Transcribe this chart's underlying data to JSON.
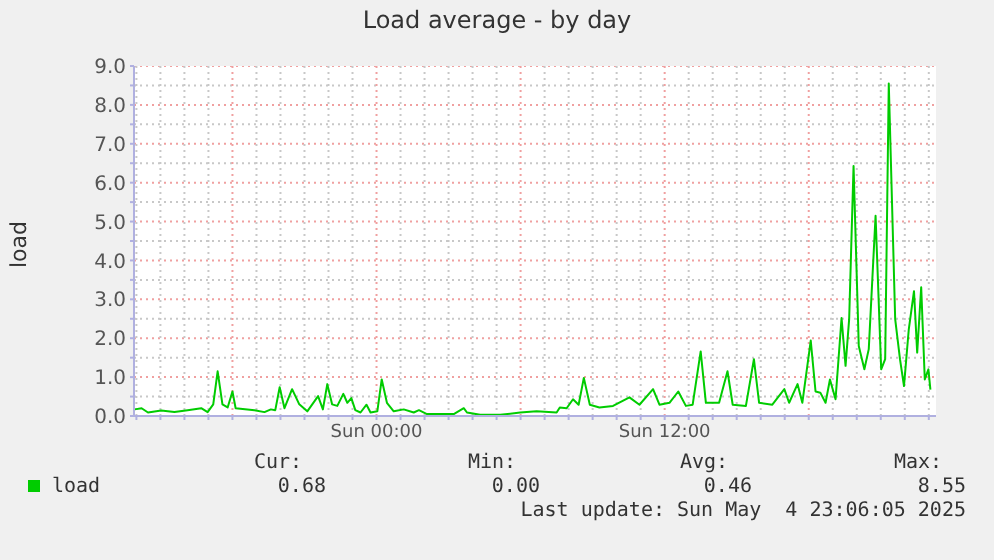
{
  "chart_data": {
    "type": "line",
    "title": "Load average - by day",
    "ylabel": "load",
    "x": [
      "2025-05-03T13:56",
      "2025-05-03T14:13",
      "2025-05-03T14:29",
      "2025-05-03T15:02",
      "2025-05-03T15:35",
      "2025-05-03T16:08",
      "2025-05-03T16:42",
      "2025-05-03T16:58",
      "2025-05-03T17:12",
      "2025-05-03T17:23",
      "2025-05-03T17:35",
      "2025-05-03T17:48",
      "2025-05-03T18:00",
      "2025-05-03T18:08",
      "2025-05-03T18:55",
      "2025-05-03T19:20",
      "2025-05-03T19:36",
      "2025-05-03T19:47",
      "2025-05-03T19:58",
      "2025-05-03T20:10",
      "2025-05-03T20:29",
      "2025-05-03T20:47",
      "2025-05-03T21:07",
      "2025-05-03T21:34",
      "2025-05-03T21:46",
      "2025-05-03T21:57",
      "2025-05-03T22:09",
      "2025-05-03T22:22",
      "2025-05-03T22:37",
      "2025-05-03T22:47",
      "2025-05-03T22:57",
      "2025-05-03T23:07",
      "2025-05-03T23:20",
      "2025-05-03T23:35",
      "2025-05-03T23:45",
      "2025-05-04T00:02",
      "2025-05-04T00:13",
      "2025-05-04T00:26",
      "2025-05-04T00:43",
      "2025-05-04T01:08",
      "2025-05-04T01:33",
      "2025-05-04T01:46",
      "2025-05-04T02:06",
      "2025-05-04T02:40",
      "2025-05-04T03:13",
      "2025-05-04T03:38",
      "2025-05-04T03:46",
      "2025-05-04T04:19",
      "2025-05-04T05:09",
      "2025-05-04T05:59",
      "2025-05-04T06:40",
      "2025-05-04T07:30",
      "2025-05-04T07:38",
      "2025-05-04T07:55",
      "2025-05-04T08:11",
      "2025-05-04T08:25",
      "2025-05-04T08:38",
      "2025-05-04T08:53",
      "2025-05-04T09:17",
      "2025-05-04T09:51",
      "2025-05-04T10:32",
      "2025-05-04T10:57",
      "2025-05-04T11:31",
      "2025-05-04T11:47",
      "2025-05-04T12:12",
      "2025-05-04T12:34",
      "2025-05-04T12:53",
      "2025-05-04T13:10",
      "2025-05-04T13:30",
      "2025-05-04T13:43",
      "2025-05-04T14:16",
      "2025-05-04T14:37",
      "2025-05-04T14:50",
      "2025-05-04T15:23",
      "2025-05-04T15:43",
      "2025-05-04T15:56",
      "2025-05-04T16:29",
      "2025-05-04T16:59",
      "2025-05-04T17:11",
      "2025-05-04T17:32",
      "2025-05-04T17:44",
      "2025-05-04T18:05",
      "2025-05-04T18:17",
      "2025-05-04T18:29",
      "2025-05-04T18:42",
      "2025-05-04T18:53",
      "2025-05-04T19:07",
      "2025-05-04T19:22",
      "2025-05-04T19:32",
      "2025-05-04T19:41",
      "2025-05-04T19:52",
      "2025-05-04T20:05",
      "2025-05-04T20:19",
      "2025-05-04T20:30",
      "2025-05-04T20:47",
      "2025-05-04T21:01",
      "2025-05-04T21:11",
      "2025-05-04T21:20",
      "2025-05-04T21:36",
      "2025-05-04T21:48",
      "2025-05-04T21:58",
      "2025-05-04T22:10",
      "2025-05-04T22:23",
      "2025-05-04T22:31",
      "2025-05-04T22:41",
      "2025-05-04T22:50",
      "2025-05-04T22:59",
      "2025-05-04T23:04"
    ],
    "series": [
      {
        "name": "load",
        "color": "#00cc00",
        "values": [
          0.17,
          0.2,
          0.09,
          0.14,
          0.1,
          0.15,
          0.2,
          0.1,
          0.3,
          1.15,
          0.3,
          0.22,
          0.63,
          0.2,
          0.15,
          0.1,
          0.17,
          0.15,
          0.74,
          0.2,
          0.69,
          0.3,
          0.12,
          0.51,
          0.17,
          0.82,
          0.3,
          0.26,
          0.57,
          0.34,
          0.46,
          0.15,
          0.09,
          0.29,
          0.09,
          0.12,
          0.94,
          0.34,
          0.12,
          0.17,
          0.09,
          0.15,
          0.05,
          0.05,
          0.05,
          0.2,
          0.09,
          0.03,
          0.03,
          0.09,
          0.12,
          0.09,
          0.22,
          0.2,
          0.43,
          0.29,
          0.98,
          0.29,
          0.22,
          0.26,
          0.48,
          0.29,
          0.69,
          0.29,
          0.34,
          0.63,
          0.26,
          0.29,
          1.66,
          0.34,
          0.34,
          1.15,
          0.29,
          0.26,
          1.46,
          0.34,
          0.29,
          0.69,
          0.34,
          0.82,
          0.34,
          1.94,
          0.63,
          0.6,
          0.34,
          0.94,
          0.43,
          2.52,
          1.29,
          2.49,
          6.43,
          1.8,
          1.2,
          1.72,
          5.15,
          1.2,
          1.46,
          8.55,
          2.49,
          1.46,
          0.77,
          2.23,
          3.21,
          1.63,
          3.31,
          0.94,
          1.2,
          0.68
        ]
      }
    ],
    "xlim": [
      "2025-05-03T13:54",
      "2025-05-04T23:18"
    ],
    "xticks": [
      {
        "value": "2025-05-03T14:00",
        "label": null
      },
      {
        "value": "2025-05-03T15:00",
        "label": null
      },
      {
        "value": "2025-05-03T16:00",
        "label": null
      },
      {
        "value": "2025-05-03T17:00",
        "label": null
      },
      {
        "value": "2025-05-03T18:00",
        "label": null
      },
      {
        "value": "2025-05-03T19:00",
        "label": null
      },
      {
        "value": "2025-05-03T20:00",
        "label": null
      },
      {
        "value": "2025-05-03T21:00",
        "label": null
      },
      {
        "value": "2025-05-03T22:00",
        "label": null
      },
      {
        "value": "2025-05-03T23:00",
        "label": null
      },
      {
        "value": "2025-05-04T00:00",
        "label": "Sun 00:00"
      },
      {
        "value": "2025-05-04T01:00",
        "label": null
      },
      {
        "value": "2025-05-04T02:00",
        "label": null
      },
      {
        "value": "2025-05-04T03:00",
        "label": null
      },
      {
        "value": "2025-05-04T04:00",
        "label": null
      },
      {
        "value": "2025-05-04T05:00",
        "label": null
      },
      {
        "value": "2025-05-04T06:00",
        "label": null
      },
      {
        "value": "2025-05-04T07:00",
        "label": null
      },
      {
        "value": "2025-05-04T08:00",
        "label": null
      },
      {
        "value": "2025-05-04T09:00",
        "label": null
      },
      {
        "value": "2025-05-04T10:00",
        "label": null
      },
      {
        "value": "2025-05-04T11:00",
        "label": null
      },
      {
        "value": "2025-05-04T12:00",
        "label": "Sun 12:00"
      },
      {
        "value": "2025-05-04T13:00",
        "label": null
      },
      {
        "value": "2025-05-04T14:00",
        "label": null
      },
      {
        "value": "2025-05-04T15:00",
        "label": null
      },
      {
        "value": "2025-05-04T16:00",
        "label": null
      },
      {
        "value": "2025-05-04T17:00",
        "label": null
      },
      {
        "value": "2025-05-04T18:00",
        "label": null
      },
      {
        "value": "2025-05-04T19:00",
        "label": null
      },
      {
        "value": "2025-05-04T20:00",
        "label": null
      },
      {
        "value": "2025-05-04T21:00",
        "label": null
      },
      {
        "value": "2025-05-04T22:00",
        "label": null
      },
      {
        "value": "2025-05-04T23:00",
        "label": null
      }
    ],
    "ylim": [
      0,
      9
    ],
    "yticks": [
      {
        "value": 0,
        "label": "0.0"
      },
      {
        "value": 0.5,
        "label": null
      },
      {
        "value": 1,
        "label": "1.0"
      },
      {
        "value": 1.5,
        "label": null
      },
      {
        "value": 2,
        "label": "2.0"
      },
      {
        "value": 2.5,
        "label": null
      },
      {
        "value": 3,
        "label": "3.0"
      },
      {
        "value": 3.5,
        "label": null
      },
      {
        "value": 4,
        "label": "4.0"
      },
      {
        "value": 4.5,
        "label": null
      },
      {
        "value": 5,
        "label": "5.0"
      },
      {
        "value": 5.5,
        "label": null
      },
      {
        "value": 6,
        "label": "6.0"
      },
      {
        "value": 6.5,
        "label": null
      },
      {
        "value": 7,
        "label": "7.0"
      },
      {
        "value": 7.5,
        "label": null
      },
      {
        "value": 8,
        "label": "8.0"
      },
      {
        "value": 8.5,
        "label": null
      },
      {
        "value": 9,
        "label": "9.0"
      }
    ],
    "grid": true,
    "legend": "bottom left",
    "marker": "none",
    "line_style": "solid",
    "annotations": [
      "Cur:",
      "Min:",
      "Avg:",
      "Max:",
      "0.68",
      "0.00",
      "0.46",
      "8.55",
      "Last update: Sun May  4 23:06:05 2025"
    ]
  }
}
